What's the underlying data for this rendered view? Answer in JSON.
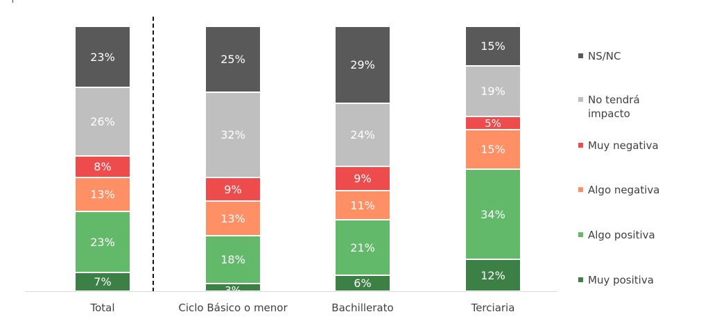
{
  "chart_data": {
    "type": "bar",
    "stacked": true,
    "percent": true,
    "title": "",
    "xlabel": "",
    "ylabel": "",
    "ylim": [
      0,
      100
    ],
    "grid": false,
    "legend_position": "right",
    "categories": [
      "Total",
      "Ciclo Básico o menor",
      "Bachillerato",
      "Terciaria"
    ],
    "series": [
      {
        "name": "Muy positiva",
        "color": "#3c8045",
        "values": [
          7,
          3,
          6,
          12
        ]
      },
      {
        "name": "Algo positiva",
        "color": "#63b96a",
        "values": [
          23,
          18,
          21,
          34
        ]
      },
      {
        "name": "Algo negativa",
        "color": "#ff8f65",
        "values": [
          13,
          13,
          11,
          15
        ]
      },
      {
        "name": "Muy negativa",
        "color": "#ee4b4d",
        "values": [
          8,
          9,
          9,
          5
        ]
      },
      {
        "name": "No tendrá impacto",
        "color": "#bfbfbf",
        "values": [
          26,
          32,
          24,
          19
        ]
      },
      {
        "name": "NS/NC",
        "color": "#595959",
        "values": [
          23,
          25,
          29,
          15
        ]
      }
    ],
    "annotations": [
      "Dashed vertical separator between Total and the education-level groups"
    ]
  },
  "legend": [
    {
      "label": "NS/NC",
      "color": "#595959"
    },
    {
      "label": "No tendrá impacto",
      "color": "#bfbfbf"
    },
    {
      "label": "Muy negativa",
      "color": "#ee4b4d"
    },
    {
      "label": "Algo negativa",
      "color": "#ff8f65"
    },
    {
      "label": "Algo positiva",
      "color": "#63b96a"
    },
    {
      "label": "Muy positiva",
      "color": "#3c8045"
    }
  ]
}
